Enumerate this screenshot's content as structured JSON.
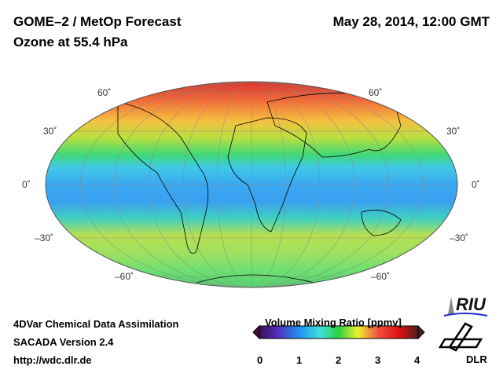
{
  "header": {
    "title": "GOME–2 / MetOp Forecast",
    "subtitle": "Ozone at 55.4 hPa",
    "datetime": "May 28, 2014, 12:00 GMT"
  },
  "map": {
    "lat_labels_left": [
      "60˚",
      "30˚",
      "0˚",
      "–30˚",
      "–60˚"
    ],
    "lat_labels_right": [
      "60˚",
      "30˚",
      "0˚",
      "–30˚",
      "–60˚"
    ]
  },
  "footer": {
    "line1": "4DVar Chemical Data Assimilation",
    "line2": "SACADA Version 2.4",
    "url": "http://wdc.dlr.de"
  },
  "colorbar": {
    "title": "Volume Mixing Ratio [ppmv]",
    "ticks": [
      "0",
      "1",
      "2",
      "3",
      "4"
    ],
    "range": [
      0,
      4
    ]
  },
  "logos": {
    "riu": "RIU",
    "dlr": "DLR"
  }
}
